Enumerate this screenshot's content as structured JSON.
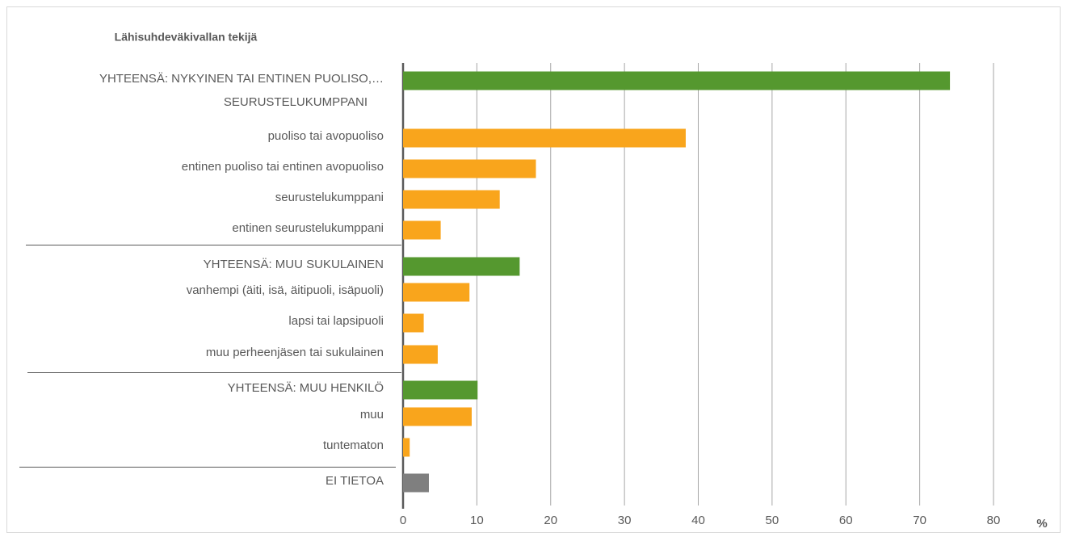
{
  "chart_data": {
    "type": "barh",
    "title": "Lähisuhdeväkivallan tekijä",
    "xlabel": "%",
    "categories": [
      [
        "YHTEENSÄ: NYKYINEN TAI ENTINEN PUOLISO,…",
        "SEURUSTELUKUMPPANI"
      ],
      "puoliso tai avopuoliso",
      "entinen puoliso tai entinen avopuoliso",
      "seurustelukumppani",
      "entinen seurustelukumppani",
      "YHTEENSÄ: MUU SUKULAINEN",
      "vanhempi (äiti, isä, äitipuoli, isäpuoli)",
      "lapsi tai lapsipuoli",
      "muu perheenjäsen tai sukulainen",
      "YHTEENSÄ: MUU HENKILÖ",
      "muu",
      "tuntematon",
      "EI TIETOA"
    ],
    "values": [
      74.1,
      38.3,
      18.0,
      13.1,
      5.1,
      15.8,
      9.0,
      2.8,
      4.7,
      10.1,
      9.3,
      0.9,
      3.5
    ],
    "colors": [
      "#55982f",
      "#f9a51c",
      "#f9a51c",
      "#f9a51c",
      "#f9a51c",
      "#55982f",
      "#f9a51c",
      "#f9a51c",
      "#f9a51c",
      "#55982f",
      "#f9a51c",
      "#f9a51c",
      "#7f7f7f"
    ],
    "xlim": [
      0,
      80
    ],
    "xticks": [
      0,
      10,
      20,
      30,
      40,
      50,
      60,
      70,
      80
    ],
    "grid": true
  }
}
